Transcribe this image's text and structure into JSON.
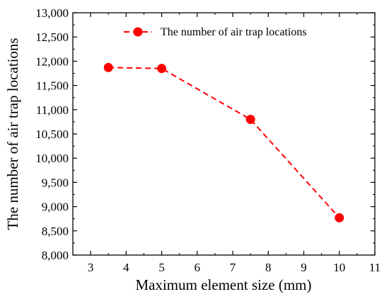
{
  "chart_data": {
    "type": "line",
    "xlabel": "Maximum element size (mm)",
    "ylabel": "The number of air trap locations",
    "xlim": [
      2.5,
      11
    ],
    "ylim": [
      8000,
      13000
    ],
    "xticks": [
      3,
      4,
      5,
      6,
      7,
      8,
      9,
      10,
      11
    ],
    "yticks": [
      8000,
      8500,
      9000,
      9500,
      10000,
      10500,
      11000,
      11500,
      12000,
      12500,
      13000
    ],
    "xtick_labels": [
      "3",
      "4",
      "5",
      "6",
      "7",
      "8",
      "9",
      "10",
      "11"
    ],
    "ytick_labels": [
      "8,000",
      "8,500",
      "9,000",
      "9,500",
      "10,000",
      "10,500",
      "11,000",
      "11,500",
      "12,000",
      "12,500",
      "13,000"
    ],
    "grid": false,
    "legend_position": "top-right",
    "series": [
      {
        "name": "The number of air trap locations",
        "color": "#ff0000",
        "line_style": "dashed",
        "marker": "circle",
        "x": [
          3.5,
          5,
          7.5,
          10
        ],
        "y": [
          11870,
          11850,
          10800,
          8770
        ]
      }
    ]
  }
}
